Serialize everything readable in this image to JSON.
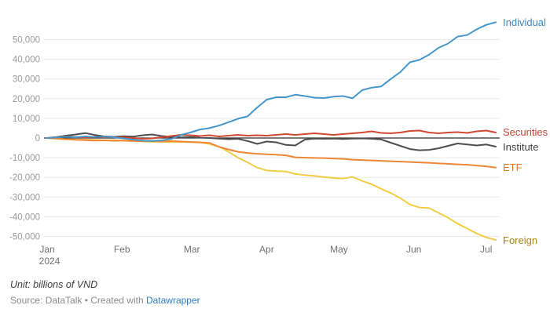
{
  "chart_data": {
    "type": "line",
    "title": "",
    "xlabel": "",
    "ylabel": "",
    "unit": "billions of VND",
    "grid": true,
    "legend_position": "right-edge-direct-labels",
    "ylim": [
      -50000,
      50000
    ],
    "y_ticks": [
      50000,
      40000,
      30000,
      20000,
      10000,
      0,
      -10000,
      -20000,
      -30000,
      -40000,
      -50000
    ],
    "x_total_days": 186,
    "x_months": [
      {
        "label": "Jan",
        "sublabel": "2024",
        "day": 0
      },
      {
        "label": "Feb",
        "day": 31
      },
      {
        "label": "Mar",
        "day": 60
      },
      {
        "label": "Apr",
        "day": 91
      },
      {
        "label": "May",
        "day": 121
      },
      {
        "label": "Jun",
        "day": 152
      },
      {
        "label": "Jul",
        "day": 182
      }
    ],
    "series": [
      {
        "name": "Individual",
        "color": "#4596c8",
        "label_color": "#3d88bb",
        "values": [
          0,
          300,
          600,
          400,
          800,
          500,
          700,
          400,
          -200,
          -800,
          -1400,
          -1500,
          -1200,
          -500,
          1500,
          2800,
          4300,
          5000,
          6300,
          8000,
          9800,
          11000,
          15500,
          19500,
          20700,
          20700,
          22000,
          21300,
          20500,
          20300,
          21000,
          21300,
          20200,
          24300,
          25600,
          26200,
          30000,
          33500,
          38500,
          39700,
          42300,
          45800,
          48000,
          51500,
          52300,
          55200,
          57500,
          58800
        ]
      },
      {
        "name": "Securities",
        "color": "#d04832",
        "label_color": "#c84335",
        "values": [
          0,
          400,
          700,
          500,
          300,
          600,
          400,
          500,
          300,
          0,
          -400,
          -200,
          400,
          1000,
          1600,
          1400,
          1000,
          1400,
          800,
          1200,
          1600,
          1200,
          1400,
          1200,
          1600,
          2000,
          1600,
          2000,
          2400,
          2000,
          1600,
          2000,
          2400,
          2800,
          3400,
          2600,
          2400,
          2800,
          3600,
          3800,
          2800,
          2400,
          2800,
          3000,
          2600,
          3400,
          3800,
          2800
        ]
      },
      {
        "name": "Institute",
        "color": "#4d4d4d",
        "label_color": "#3f3f3f",
        "values": [
          0,
          500,
          1200,
          1800,
          2500,
          1500,
          800,
          600,
          900,
          700,
          1400,
          1800,
          1000,
          600,
          300,
          500,
          200,
          0,
          -300,
          -600,
          -400,
          -1500,
          -3000,
          -1800,
          -2200,
          -3500,
          -3800,
          -800,
          -300,
          -400,
          -300,
          -500,
          -300,
          -200,
          -400,
          -700,
          -2400,
          -4000,
          -5600,
          -6200,
          -6000,
          -5200,
          -4000,
          -2800,
          -3300,
          -3800,
          -3300,
          -4400
        ]
      },
      {
        "name": "ETF",
        "color": "#ee8633",
        "label_color": "#e07b1e",
        "values": [
          0,
          -300,
          -600,
          -900,
          -1100,
          -1300,
          -1200,
          -1400,
          -1300,
          -1500,
          -1600,
          -1500,
          -1700,
          -1600,
          -1800,
          -2000,
          -2200,
          -2500,
          -4500,
          -5800,
          -7000,
          -7600,
          -8000,
          -8300,
          -8500,
          -8800,
          -9800,
          -10000,
          -10100,
          -10200,
          -10400,
          -10600,
          -11000,
          -11200,
          -11400,
          -11600,
          -11800,
          -12000,
          -12200,
          -12400,
          -12600,
          -12900,
          -13100,
          -13400,
          -13600,
          -14000,
          -14400,
          -15000
        ]
      },
      {
        "name": "Foreign",
        "color": "#f0cd45",
        "label_color": "#a5831d",
        "values": [
          0,
          -400,
          -700,
          -900,
          -800,
          -1000,
          -1200,
          -1100,
          -1400,
          -1600,
          -1800,
          -2000,
          -1900,
          -2100,
          -2000,
          -2100,
          -2300,
          -3000,
          -4400,
          -7000,
          -10000,
          -12400,
          -15000,
          -16500,
          -16800,
          -17000,
          -18300,
          -18800,
          -19300,
          -19800,
          -20300,
          -20600,
          -19800,
          -21800,
          -23500,
          -25800,
          -28000,
          -30500,
          -33800,
          -35300,
          -35600,
          -38000,
          -40500,
          -43500,
          -46000,
          -48500,
          -50500,
          -51800
        ]
      }
    ],
    "style": {
      "grid_color": "#e9e9e9",
      "zero_line_color": "#2f2f2f",
      "y_tick_color": "#9a9a9a",
      "x_tick_color": "#707070"
    }
  },
  "footer": {
    "unit_label": "Unit: billions of VND",
    "source_prefix": "Source: DataTalk • Created with ",
    "link_label": "Datawrapper"
  }
}
